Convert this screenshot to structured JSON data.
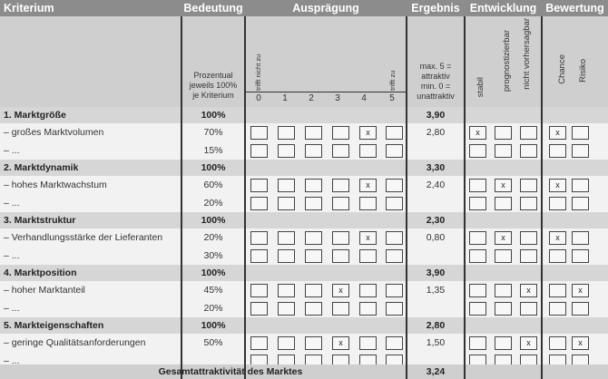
{
  "header": {
    "kriterium": "Kriterium",
    "bedeutung": "Bedeutung",
    "auspraegung": "Ausprägung",
    "ergebnis": "Ergebnis",
    "entwicklung": "Entwicklung",
    "bewertung": "Bewertung"
  },
  "subheader": {
    "bedeutung_note": [
      "Prozentual",
      "jeweils 100%",
      "je Kriterium"
    ],
    "auspraegung_low": "trifft nicht zu",
    "auspraegung_high": "trifft zu",
    "scale": [
      "0",
      "1",
      "2",
      "3",
      "4",
      "5"
    ],
    "ergebnis_note": [
      "max. 5 =",
      "attraktiv",
      "min. 0 =",
      "unattraktiv"
    ],
    "entwicklung_options": [
      "stabil",
      "prognostizierbar",
      "nicht vorhersagbar"
    ],
    "bewertung_options": [
      "Chance",
      "Risiko"
    ]
  },
  "groups": [
    {
      "title": "1. Marktgröße",
      "weight": "100%",
      "result": "3,90",
      "items": [
        {
          "label": "– großes Marktvolumen",
          "weight": "70%",
          "result": "2,80",
          "score": 4,
          "entwicklung": 0,
          "bewertung": 0
        },
        {
          "label": "– ...",
          "weight": "15%",
          "result": "",
          "score": -1,
          "entwicklung": -1,
          "bewertung": -1
        }
      ]
    },
    {
      "title": "2. Marktdynamik",
      "weight": "100%",
      "result": "3,30",
      "items": [
        {
          "label": "– hohes Marktwachstum",
          "weight": "60%",
          "result": "2,40",
          "score": 4,
          "entwicklung": 1,
          "bewertung": 0
        },
        {
          "label": "– ...",
          "weight": "20%",
          "result": "",
          "score": -1,
          "entwicklung": -1,
          "bewertung": -1
        }
      ]
    },
    {
      "title": "3. Marktstruktur",
      "weight": "100%",
      "result": "2,30",
      "items": [
        {
          "label": "– Verhandlungsstärke der Lieferanten",
          "weight": "20%",
          "result": "0,80",
          "score": 4,
          "entwicklung": 1,
          "bewertung": 0
        },
        {
          "label": "– ...",
          "weight": "30%",
          "result": "",
          "score": -1,
          "entwicklung": -1,
          "bewertung": -1
        }
      ]
    },
    {
      "title": "4. Marktposition",
      "weight": "100%",
      "result": "3,90",
      "items": [
        {
          "label": "– hoher Marktanteil",
          "weight": "45%",
          "result": "1,35",
          "score": 3,
          "entwicklung": 2,
          "bewertung": 1
        },
        {
          "label": "– ...",
          "weight": "20%",
          "result": "",
          "score": -1,
          "entwicklung": -1,
          "bewertung": -1
        }
      ]
    },
    {
      "title": "5. Markteigenschaften",
      "weight": "100%",
      "result": "2,80",
      "items": [
        {
          "label": "– geringe Qualitätsanforderungen",
          "weight": "50%",
          "result": "1,50",
          "score": 3,
          "entwicklung": 2,
          "bewertung": 1
        },
        {
          "label": "– ...",
          "weight": "",
          "result": "",
          "score": -1,
          "entwicklung": -1,
          "bewertung": -1
        }
      ]
    }
  ],
  "total": {
    "label": "Gesamtattraktivität des Marktes",
    "value": "3,24"
  },
  "checkmark": "x"
}
